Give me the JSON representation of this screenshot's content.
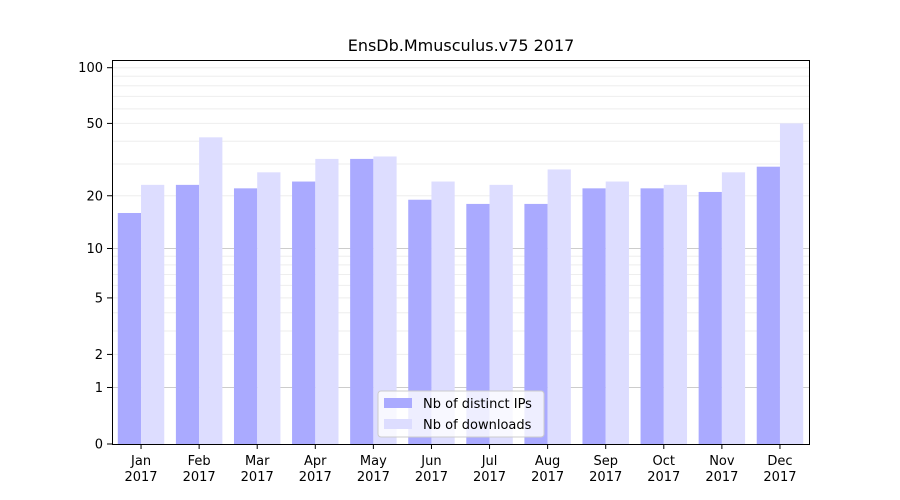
{
  "chart_data": {
    "type": "bar",
    "title": "EnsDb.Mmusculus.v75 2017",
    "xlabel": "",
    "ylabel": "",
    "yscale": "log1p",
    "ylim": [
      0,
      110
    ],
    "y_ticks": [
      0,
      1,
      2,
      5,
      10,
      20,
      50,
      100
    ],
    "categories": [
      "Jan\n2017",
      "Feb\n2017",
      "Mar\n2017",
      "Apr\n2017",
      "May\n2017",
      "Jun\n2017",
      "Jul\n2017",
      "Aug\n2017",
      "Sep\n2017",
      "Oct\n2017",
      "Nov\n2017",
      "Dec\n2017"
    ],
    "series": [
      {
        "name": "Nb of distinct IPs",
        "color": "#aaaaff",
        "values": [
          16,
          23,
          22,
          24,
          32,
          19,
          18,
          18,
          22,
          22,
          21,
          29
        ]
      },
      {
        "name": "Nb of downloads",
        "color": "#ddddff",
        "values": [
          23,
          42,
          27,
          32,
          33,
          24,
          23,
          28,
          24,
          23,
          27,
          50
        ]
      }
    ],
    "grid": true,
    "legend_position": "bottom-center"
  }
}
